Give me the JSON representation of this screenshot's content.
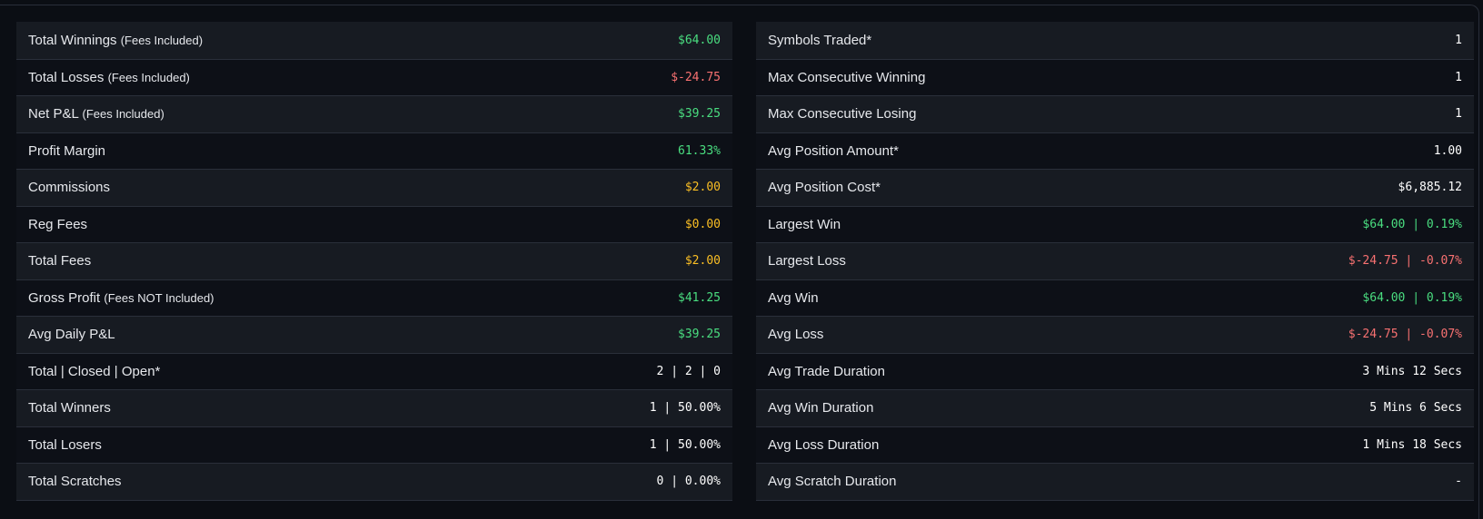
{
  "colors": {
    "green": "#4ade80",
    "red": "#f87171",
    "orange": "#fbbf24",
    "white": "#ffffff"
  },
  "left": [
    {
      "label": "Total Winnings",
      "note": "(Fees Included)",
      "value": "$64.00",
      "color": "green"
    },
    {
      "label": "Total Losses",
      "note": "(Fees Included)",
      "value": "$-24.75",
      "color": "red"
    },
    {
      "label": "Net P&L",
      "note": "(Fees Included)",
      "value": "$39.25",
      "color": "green"
    },
    {
      "label": "Profit Margin",
      "note": "",
      "value": "61.33%",
      "color": "green"
    },
    {
      "label": "Commissions",
      "note": "",
      "value": "$2.00",
      "color": "orange"
    },
    {
      "label": "Reg Fees",
      "note": "",
      "value": "$0.00",
      "color": "orange"
    },
    {
      "label": "Total Fees",
      "note": "",
      "value": "$2.00",
      "color": "orange"
    },
    {
      "label": "Gross Profit",
      "note": "(Fees NOT Included)",
      "value": "$41.25",
      "color": "green"
    },
    {
      "label": "Avg Daily P&L",
      "note": "",
      "value": "$39.25",
      "color": "green"
    },
    {
      "label": "Total | Closed | Open*",
      "note": "",
      "value": "2 | 2 | 0",
      "color": "white"
    },
    {
      "label": "Total Winners",
      "note": "",
      "value": "1 | 50.00%",
      "color": "white"
    },
    {
      "label": "Total Losers",
      "note": "",
      "value": "1 | 50.00%",
      "color": "white"
    },
    {
      "label": "Total Scratches",
      "note": "",
      "value": "0 | 0.00%",
      "color": "white"
    }
  ],
  "right": [
    {
      "label": "Symbols Traded*",
      "note": "",
      "value": "1",
      "color": "white"
    },
    {
      "label": "Max Consecutive Winning",
      "note": "",
      "value": "1",
      "color": "white"
    },
    {
      "label": "Max Consecutive Losing",
      "note": "",
      "value": "1",
      "color": "white"
    },
    {
      "label": "Avg Position Amount*",
      "note": "",
      "value": "1.00",
      "color": "white"
    },
    {
      "label": "Avg Position Cost*",
      "note": "",
      "value": "$6,885.12",
      "color": "white"
    },
    {
      "label": "Largest Win",
      "note": "",
      "value": "$64.00 | 0.19%",
      "color": "green"
    },
    {
      "label": "Largest Loss",
      "note": "",
      "value": "$-24.75 | -0.07%",
      "color": "red"
    },
    {
      "label": "Avg Win",
      "note": "",
      "value": "$64.00 | 0.19%",
      "color": "green"
    },
    {
      "label": "Avg Loss",
      "note": "",
      "value": "$-24.75 | -0.07%",
      "color": "red"
    },
    {
      "label": "Avg Trade Duration",
      "note": "",
      "value": "3 Mins 12 Secs",
      "color": "white"
    },
    {
      "label": "Avg Win Duration",
      "note": "",
      "value": "5 Mins 6 Secs",
      "color": "white"
    },
    {
      "label": "Avg Loss Duration",
      "note": "",
      "value": "1 Mins 18 Secs",
      "color": "white"
    },
    {
      "label": "Avg Scratch Duration",
      "note": "",
      "value": "-",
      "color": "white"
    }
  ]
}
